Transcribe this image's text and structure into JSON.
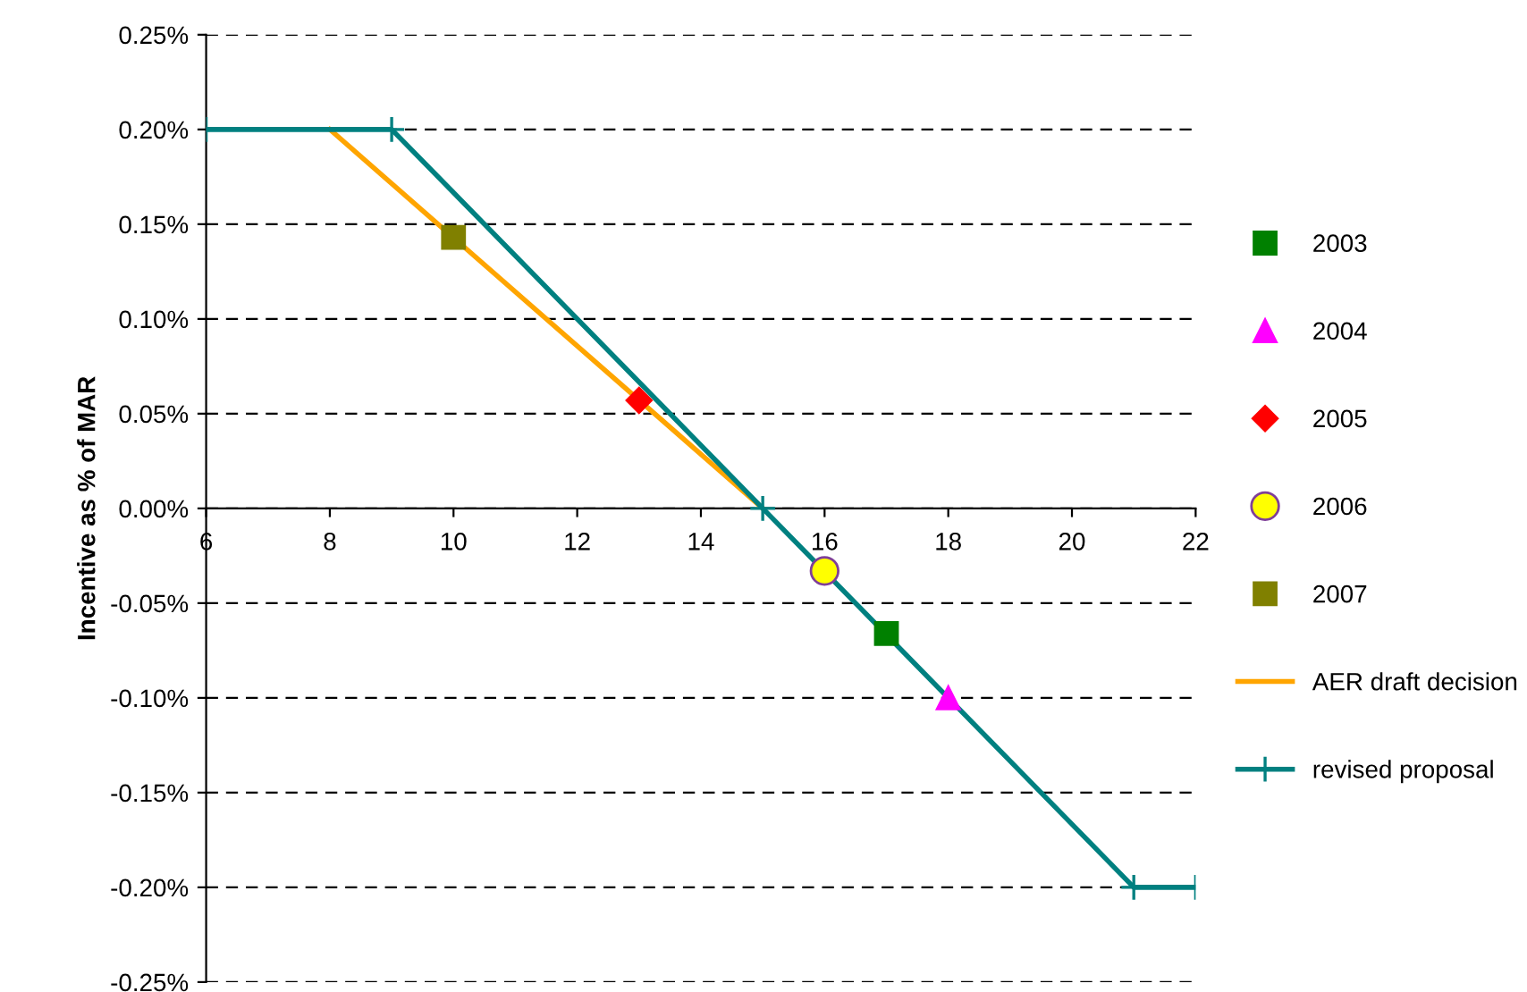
{
  "chart_data": {
    "type": "scatter",
    "ylabel": "Incentive as % of MAR",
    "xlim": [
      6,
      22
    ],
    "ylim": [
      -0.25,
      0.25
    ],
    "xticks": [
      6,
      8,
      10,
      12,
      14,
      16,
      18,
      20,
      22
    ],
    "yticks": [
      {
        "value": -0.25,
        "label": "-0.25%"
      },
      {
        "value": -0.2,
        "label": "-0.20%"
      },
      {
        "value": -0.15,
        "label": "-0.15%"
      },
      {
        "value": -0.1,
        "label": "-0.10%"
      },
      {
        "value": -0.05,
        "label": "-0.05%"
      },
      {
        "value": 0,
        "label": "0.00%"
      },
      {
        "value": 0.05,
        "label": "0.05%"
      },
      {
        "value": 0.1,
        "label": "0.10%"
      },
      {
        "value": 0.15,
        "label": "0.15%"
      },
      {
        "value": 0.2,
        "label": "0.20%"
      },
      {
        "value": 0.25,
        "label": "0.25%"
      }
    ],
    "grid": "y",
    "legend": "right",
    "series": [
      {
        "name": "2003",
        "marker": "square",
        "color": "#008000",
        "x": [
          17
        ],
        "values": [
          -0.066
        ]
      },
      {
        "name": "2004",
        "marker": "triangle",
        "color": "#ff00ff",
        "x": [
          18
        ],
        "values": [
          -0.1
        ]
      },
      {
        "name": "2005",
        "marker": "diamond",
        "color": "#ff0000",
        "x": [
          13
        ],
        "values": [
          0.057
        ]
      },
      {
        "name": "2006",
        "marker": "circle",
        "color": "#ffff00",
        "x": [
          16
        ],
        "values": [
          -0.033
        ]
      },
      {
        "name": "2007",
        "marker": "square",
        "color": "#808000",
        "x": [
          10
        ],
        "values": [
          0.143
        ]
      },
      {
        "name": "AER draft decision",
        "type": "line",
        "marker": "none",
        "color": "#ffa500",
        "x": [
          8,
          15
        ],
        "values": [
          0.2,
          0
        ]
      },
      {
        "name": "revised proposal",
        "type": "line",
        "marker": "cross",
        "color": "#008080",
        "x": [
          6,
          9,
          15,
          21,
          22
        ],
        "values": [
          0.2,
          0.2,
          0,
          -0.2,
          -0.2
        ]
      }
    ]
  }
}
